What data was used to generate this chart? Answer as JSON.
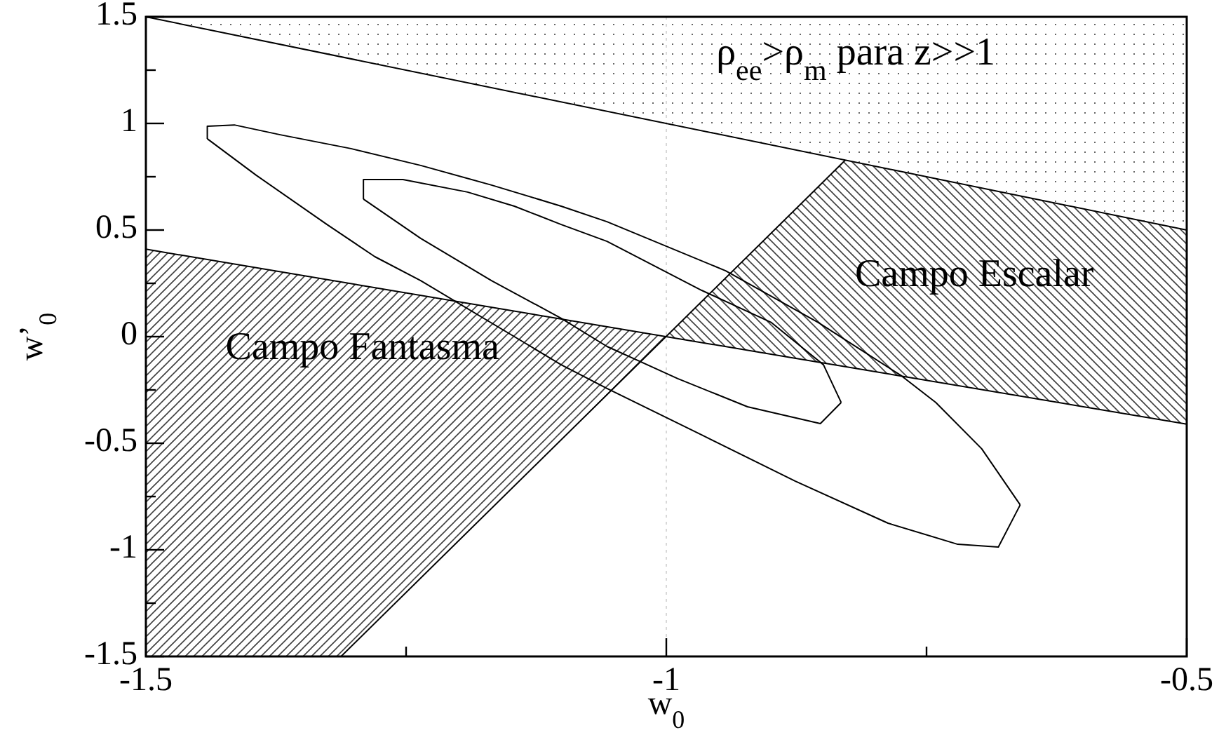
{
  "chart_data": {
    "type": "line",
    "xlabel": "w$_{0}$",
    "ylabel": "w’$_{0}$",
    "xlim": [
      -1.5,
      -0.5
    ],
    "xticks": [
      -1.5,
      {
        "value": -1.25,
        "label": null
      },
      -1,
      {
        "value": -0.75,
        "label": null
      },
      -0.5
    ],
    "ylim": [
      -1.5,
      1.5
    ],
    "yticks": [
      -1.5,
      {
        "value": -1.25,
        "label": null
      },
      -1,
      {
        "value": -0.75,
        "label": null
      },
      -0.5,
      {
        "value": -0.25,
        "label": null
      },
      0,
      {
        "value": 0.25,
        "label": null
      },
      0.5,
      {
        "value": 0.75,
        "label": null
      },
      1,
      {
        "value": 1.25,
        "label": null
      },
      1.5
    ],
    "series": [
      {
        "color": "#000000",
        "x": [
          -1.5,
          -0.5
        ],
        "values": [
          1.5,
          0.5
        ]
      },
      {
        "color": "#000000",
        "x": [
          -1.5,
          -0.5
        ],
        "values": [
          0.41,
          -0.41
        ]
      },
      {
        "color": "#000000",
        "x": [
          -1.3125,
          -0.828
        ],
        "values": [
          -1.5,
          0.828
        ]
      },
      {
        "color": "#000000",
        "x": [
          -1.441,
          -1.441,
          -1.415,
          -1.371,
          -1.303,
          -1.236,
          -1.168,
          -1.101,
          -1.057,
          -0.943,
          -0.854,
          -0.774,
          -0.741,
          -0.697,
          -0.66
        ],
        "values": [
          0.928,
          0.987,
          0.993,
          0.947,
          0.882,
          0.803,
          0.711,
          0.612,
          0.539,
          0.309,
          0.066,
          -0.184,
          -0.309,
          -0.526,
          -0.789
        ]
      },
      {
        "color": "#000000",
        "x": [
          -1.441,
          -1.394,
          -1.326,
          -1.28,
          -1.236,
          -1.146,
          -1.101,
          -1.057,
          -0.966,
          -0.876,
          -0.787,
          -0.72,
          -0.681,
          -0.66
        ],
        "values": [
          0.928,
          0.757,
          0.526,
          0.375,
          0.263,
          0,
          -0.132,
          -0.243,
          -0.461,
          -0.678,
          -0.875,
          -0.974,
          -0.987,
          -0.789
        ]
      },
      {
        "color": "#000000",
        "x": [
          -1.291,
          -1.291,
          -1.253,
          -1.191,
          -1.146,
          -1.101,
          -1.057,
          -0.966,
          -0.899,
          -0.849,
          -0.832
        ],
        "values": [
          0.645,
          0.737,
          0.737,
          0.678,
          0.612,
          0.526,
          0.447,
          0.217,
          0.066,
          -0.132,
          -0.309
        ]
      },
      {
        "color": "#000000",
        "x": [
          -1.291,
          -1.236,
          -1.168,
          -1.101,
          -1.057,
          -0.989,
          -0.922,
          -0.852,
          -0.832
        ],
        "values": [
          0.645,
          0.461,
          0.263,
          0.086,
          -0.046,
          -0.197,
          -0.329,
          -0.408,
          -0.309
        ]
      }
    ],
    "ref_lines": [
      {
        "axis": "x",
        "value": -1,
        "color": "#d8d8d8",
        "line_style": "dotted"
      }
    ],
    "line_style": "solid",
    "marker": "none",
    "annotations": [
      "ρ$_{ee}$>ρ$_{m}$ para  z>>1",
      "Campo Escalar",
      "Campo Fantasma"
    ]
  }
}
